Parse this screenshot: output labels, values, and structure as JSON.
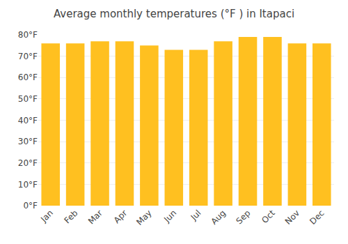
{
  "chart_data": {
    "type": "bar",
    "title": "Average monthly temperatures (°F ) in Itapaci",
    "categories": [
      "Jan",
      "Feb",
      "Mar",
      "Apr",
      "May",
      "Jun",
      "Jul",
      "Aug",
      "Sep",
      "Oct",
      "Nov",
      "Dec"
    ],
    "values": [
      76,
      76,
      77,
      77,
      75,
      73,
      73,
      77,
      79,
      79,
      76,
      76
    ],
    "color": "#FFC020",
    "ylim": [
      0,
      80
    ],
    "yticks": [
      {
        "value": 0,
        "label": "0°F"
      },
      {
        "value": 10,
        "label": "10°F"
      },
      {
        "value": 20,
        "label": "20°F"
      },
      {
        "value": 30,
        "label": "30°F"
      },
      {
        "value": 40,
        "label": "40°F"
      },
      {
        "value": 50,
        "label": "50°F"
      },
      {
        "value": 60,
        "label": "60°F"
      },
      {
        "value": 70,
        "label": "70°F"
      },
      {
        "value": 80,
        "label": "80°F"
      }
    ],
    "grid": true
  }
}
